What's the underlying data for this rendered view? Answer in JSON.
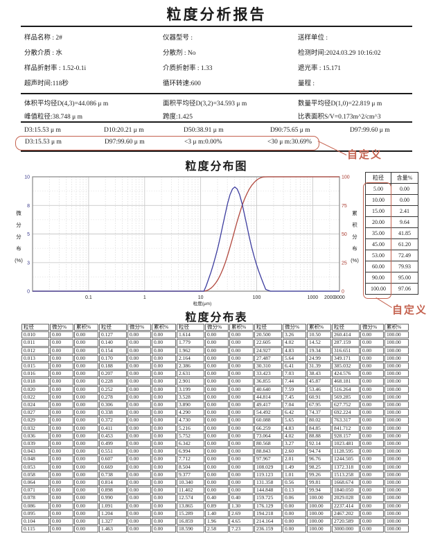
{
  "report": {
    "title": "粒度分析报告"
  },
  "annotations": {
    "custom_label": "自定义"
  },
  "info": {
    "items": [
      "样品名称 : 2#",
      "仪器型号 :",
      "送样单位 :",
      "分散介质 : 水",
      "分散剂 : No",
      "检测时间:2024.03.29 10:16:02",
      "样品折射率 : 1.52-0.1i",
      "介质折射率 : 1.33",
      "遮光率 : 15.171",
      "超声时间:118秒",
      "循环转速:600",
      "量程 :"
    ]
  },
  "averages": {
    "items": [
      "体积平均径D(4,3)=44.086 μ m",
      "面积平均径D(3,2)=34.593 μ m",
      "数量平均径D(1,0)=22.819 μ m",
      "峰值粒径:38.748 μ m",
      "跨度:1.425",
      "比表面积S/V=0.173m^2/cm^3"
    ]
  },
  "d_values": {
    "items": [
      "D3:15.53 μ m",
      "D10:20.21 μ m",
      "D50:38.91 μ m",
      "D90:75.65 μ m",
      "D97:99.60 μ m"
    ]
  },
  "custom_row": {
    "items": [
      "D3:15.53 μ m",
      "D97:99.60 μ m",
      "<3 μ m:0.00%",
      "<30 μ m:30.69%"
    ]
  },
  "chart_data": {
    "type": "line",
    "title": "粒度分布图",
    "xlabel": "粒度(μm)",
    "ylabel_left": "微分分布(%)",
    "ylabel_right": "累积分布(%)",
    "x_scale": "log",
    "xlim": [
      0.01,
      3000
    ],
    "x_ticks": [
      "0.1",
      "1",
      "10",
      "100",
      "1000",
      "2000",
      "3000"
    ],
    "ylim_left": [
      0,
      10
    ],
    "y_ticks_left": [
      "0",
      "3",
      "5",
      "8",
      "10"
    ],
    "ylim_right": [
      0,
      100
    ],
    "y_ticks_right": [
      "0",
      "25",
      "50",
      "75",
      "100"
    ],
    "grid": true,
    "series": [
      {
        "name": "微分分布",
        "axis": "left",
        "color": "#3b3b9e",
        "x": [
          0.01,
          10.0,
          11.402,
          12.574,
          13.865,
          15.289,
          16.859,
          18.59,
          20.5,
          22.605,
          24.927,
          27.487,
          30.31,
          33.423,
          36.855,
          40.64,
          44.814,
          49.417,
          54.492,
          60.088,
          66.259,
          73.064,
          80.568,
          88.843,
          97.967,
          108.029,
          119.123,
          131.358,
          144.848,
          159.725,
          176.129,
          3000
        ],
        "y": [
          0,
          0,
          0,
          0.4,
          0.89,
          1.4,
          1.96,
          2.58,
          3.26,
          4.02,
          4.83,
          5.64,
          6.41,
          7.03,
          7.44,
          7.59,
          7.45,
          7.04,
          6.42,
          5.65,
          4.83,
          4.02,
          3.27,
          2.6,
          2.01,
          1.49,
          1.01,
          0.56,
          0.13,
          0.06,
          0,
          0
        ]
      },
      {
        "name": "累积分布",
        "axis": "right",
        "color": "#b0463c",
        "x": [
          0.01,
          10.0,
          11.402,
          12.574,
          13.865,
          15.289,
          16.859,
          18.59,
          20.5,
          22.605,
          24.927,
          27.487,
          30.31,
          33.423,
          36.855,
          40.64,
          44.814,
          49.417,
          54.492,
          60.088,
          66.259,
          73.064,
          80.568,
          88.843,
          97.967,
          108.029,
          119.123,
          131.358,
          144.848,
          159.725,
          3000
        ],
        "y": [
          0,
          0,
          0,
          0.4,
          1.3,
          2.69,
          4.65,
          7.23,
          10.5,
          14.52,
          19.34,
          24.99,
          31.39,
          38.43,
          45.87,
          53.46,
          60.91,
          67.95,
          74.37,
          80.02,
          84.85,
          88.88,
          92.14,
          94.74,
          96.76,
          98.25,
          99.26,
          99.81,
          99.94,
          100,
          100
        ]
      }
    ]
  },
  "side_table": {
    "headers": [
      "粒径",
      "含量%"
    ],
    "rows": [
      [
        "5.00",
        "0.00"
      ],
      [
        "10.00",
        "0.00"
      ],
      [
        "15.00",
        "2.41"
      ],
      [
        "20.00",
        "9.64"
      ],
      [
        "35.00",
        "41.85"
      ],
      [
        "45.00",
        "61.20"
      ],
      [
        "53.00",
        "72.49"
      ],
      [
        "60.00",
        "79.93"
      ],
      [
        "90.00",
        "95.00"
      ],
      [
        "100.00",
        "97.06"
      ]
    ]
  },
  "dist_table": {
    "title": "粒度分布表",
    "headers": [
      "粒径",
      "微分%",
      "累积%",
      "粒径",
      "微分%",
      "累积%",
      "粒径",
      "微分%",
      "累积%",
      "粒径",
      "微分%",
      "累积%",
      "粒径",
      "微分%",
      "累积%"
    ],
    "rows": [
      [
        "0.010",
        "0.00",
        "0.00",
        "0.127",
        "0.00",
        "0.00",
        "1.614",
        "0.00",
        "0.00",
        "20.500",
        "3.26",
        "10.50",
        "260.414",
        "0.00",
        "100.00"
      ],
      [
        "0.011",
        "0.00",
        "0.00",
        "0.140",
        "0.00",
        "0.00",
        "1.779",
        "0.00",
        "0.00",
        "22.605",
        "4.02",
        "14.52",
        "287.159",
        "0.00",
        "100.00"
      ],
      [
        "0.012",
        "0.00",
        "0.00",
        "0.154",
        "0.00",
        "0.00",
        "1.962",
        "0.00",
        "0.00",
        "24.927",
        "4.83",
        "19.34",
        "316.651",
        "0.00",
        "100.00"
      ],
      [
        "0.013",
        "0.00",
        "0.00",
        "0.170",
        "0.00",
        "0.00",
        "2.164",
        "0.00",
        "0.00",
        "27.487",
        "5.64",
        "24.99",
        "349.171",
        "0.00",
        "100.00"
      ],
      [
        "0.015",
        "0.00",
        "0.00",
        "0.188",
        "0.00",
        "0.00",
        "2.386",
        "0.00",
        "0.00",
        "30.310",
        "6.41",
        "31.39",
        "385.032",
        "0.00",
        "100.00"
      ],
      [
        "0.016",
        "0.00",
        "0.00",
        "0.207",
        "0.00",
        "0.00",
        "2.631",
        "0.00",
        "0.00",
        "33.423",
        "7.03",
        "38.43",
        "424.576",
        "0.00",
        "100.00"
      ],
      [
        "0.018",
        "0.00",
        "0.00",
        "0.228",
        "0.00",
        "0.00",
        "2.901",
        "0.00",
        "0.00",
        "36.855",
        "7.44",
        "45.87",
        "468.181",
        "0.00",
        "100.00"
      ],
      [
        "0.020",
        "0.00",
        "0.00",
        "0.252",
        "0.00",
        "0.00",
        "3.199",
        "0.00",
        "0.00",
        "40.640",
        "7.59",
        "53.46",
        "516.264",
        "0.00",
        "100.00"
      ],
      [
        "0.022",
        "0.00",
        "0.00",
        "0.278",
        "0.00",
        "0.00",
        "3.528",
        "0.00",
        "0.00",
        "44.814",
        "7.45",
        "60.91",
        "569.285",
        "0.00",
        "100.00"
      ],
      [
        "0.024",
        "0.00",
        "0.00",
        "0.306",
        "0.00",
        "0.00",
        "3.890",
        "0.00",
        "0.00",
        "49.417",
        "7.04",
        "67.95",
        "627.752",
        "0.00",
        "100.00"
      ],
      [
        "0.027",
        "0.00",
        "0.00",
        "0.338",
        "0.00",
        "0.00",
        "4.290",
        "0.00",
        "0.00",
        "54.492",
        "6.42",
        "74.37",
        "692.224",
        "0.00",
        "100.00"
      ],
      [
        "0.029",
        "0.00",
        "0.00",
        "0.372",
        "0.00",
        "0.00",
        "4.730",
        "0.00",
        "0.00",
        "60.088",
        "5.65",
        "80.02",
        "763.317",
        "0.00",
        "100.00"
      ],
      [
        "0.032",
        "0.00",
        "0.00",
        "0.411",
        "0.00",
        "0.00",
        "5.216",
        "0.00",
        "0.00",
        "66.259",
        "4.83",
        "84.85",
        "841.712",
        "0.00",
        "100.00"
      ],
      [
        "0.036",
        "0.00",
        "0.00",
        "0.453",
        "0.00",
        "0.00",
        "5.752",
        "0.00",
        "0.00",
        "73.064",
        "4.02",
        "88.88",
        "928.157",
        "0.00",
        "100.00"
      ],
      [
        "0.039",
        "0.00",
        "0.00",
        "0.499",
        "0.00",
        "0.00",
        "6.342",
        "0.00",
        "0.00",
        "80.568",
        "3.27",
        "92.14",
        "1023.481",
        "0.00",
        "100.00"
      ],
      [
        "0.043",
        "0.00",
        "0.00",
        "0.551",
        "0.00",
        "0.00",
        "6.994",
        "0.00",
        "0.00",
        "88.843",
        "2.60",
        "94.74",
        "1128.595",
        "0.00",
        "100.00"
      ],
      [
        "0.048",
        "0.00",
        "0.00",
        "0.607",
        "0.00",
        "0.00",
        "7.712",
        "0.00",
        "0.00",
        "97.967",
        "2.01",
        "96.76",
        "1244.505",
        "0.00",
        "100.00"
      ],
      [
        "0.053",
        "0.00",
        "0.00",
        "0.669",
        "0.00",
        "0.00",
        "8.504",
        "0.00",
        "0.00",
        "108.029",
        "1.49",
        "98.25",
        "1372.318",
        "0.00",
        "100.00"
      ],
      [
        "0.058",
        "0.00",
        "0.00",
        "0.738",
        "0.00",
        "0.00",
        "9.377",
        "0.00",
        "0.00",
        "119.123",
        "1.01",
        "99.26",
        "1513.258",
        "0.00",
        "100.00"
      ],
      [
        "0.064",
        "0.00",
        "0.00",
        "0.814",
        "0.00",
        "0.00",
        "10.340",
        "0.00",
        "0.00",
        "131.358",
        "0.56",
        "99.81",
        "1668.674",
        "0.00",
        "100.00"
      ],
      [
        "0.071",
        "0.00",
        "0.00",
        "0.898",
        "0.00",
        "0.00",
        "11.402",
        "0.00",
        "0.00",
        "144.848",
        "0.13",
        "99.94",
        "1840.050",
        "0.00",
        "100.00"
      ],
      [
        "0.078",
        "0.00",
        "0.00",
        "0.990",
        "0.00",
        "0.00",
        "12.574",
        "0.40",
        "0.40",
        "159.725",
        "0.06",
        "100.00",
        "2029.028",
        "0.00",
        "100.00"
      ],
      [
        "0.086",
        "0.00",
        "0.00",
        "1.091",
        "0.00",
        "0.00",
        "13.865",
        "0.89",
        "1.30",
        "176.129",
        "0.00",
        "100.00",
        "2237.414",
        "0.00",
        "100.00"
      ],
      [
        "0.095",
        "0.00",
        "0.00",
        "1.204",
        "0.00",
        "0.00",
        "15.289",
        "1.40",
        "2.69",
        "194.218",
        "0.00",
        "100.00",
        "2467.202",
        "0.00",
        "100.00"
      ],
      [
        "0.104",
        "0.00",
        "0.00",
        "1.327",
        "0.00",
        "0.00",
        "16.859",
        "1.96",
        "4.65",
        "214.164",
        "0.00",
        "100.00",
        "2720.589",
        "0.00",
        "100.00"
      ],
      [
        "0.115",
        "0.00",
        "0.00",
        "1.463",
        "0.00",
        "0.00",
        "18.590",
        "2.58",
        "7.23",
        "236.159",
        "0.00",
        "100.00",
        "3000.000",
        "0.00",
        "100.00"
      ]
    ]
  }
}
